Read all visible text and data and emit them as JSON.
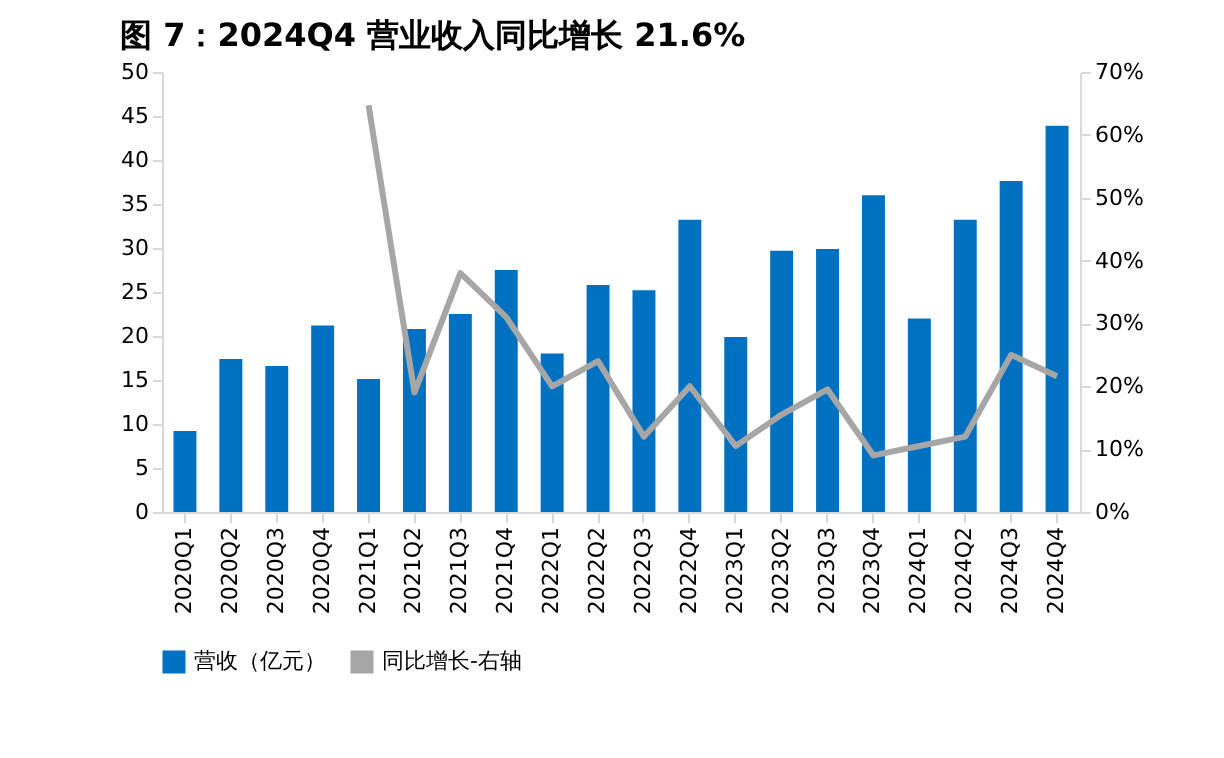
{
  "chart_data": {
    "type": "bar",
    "title": "图 7：2024Q4 营业收入同比增长 21.6%",
    "categories": [
      "2020Q1",
      "2020Q2",
      "2020Q3",
      "2020Q4",
      "2021Q1",
      "2021Q2",
      "2021Q3",
      "2021Q4",
      "2022Q1",
      "2022Q2",
      "2022Q3",
      "2022Q4",
      "2023Q1",
      "2023Q2",
      "2023Q3",
      "2023Q4",
      "2024Q1",
      "2024Q2",
      "2024Q3",
      "2024Q4"
    ],
    "series": [
      {
        "name": "营收（亿元）",
        "color": "#0070c0",
        "values": [
          9.2,
          17.4,
          16.6,
          21.2,
          15.1,
          20.8,
          22.5,
          27.5,
          18,
          25.8,
          25.2,
          33.2,
          19.9,
          29.7,
          29.9,
          36,
          22,
          33.2,
          37.6,
          43.9
        ]
      },
      {
        "name": "同比增长-右轴",
        "type": "line",
        "axis": "y2",
        "color": "#a6a6a6",
        "values": [
          null,
          null,
          null,
          null,
          64.7,
          19,
          38,
          31,
          20,
          24,
          12,
          20,
          10.5,
          15.5,
          19.5,
          9,
          10.5,
          12,
          25,
          21.6
        ]
      }
    ],
    "ylim": [
      0,
      50
    ],
    "yticks": [
      0,
      5,
      10,
      15,
      20,
      25,
      30,
      35,
      40,
      45,
      50
    ],
    "y2lim": [
      0,
      70
    ],
    "y2ticks": [
      {
        "value": 0,
        "label": "0%"
      },
      {
        "value": 10,
        "label": "10%"
      },
      {
        "value": 20,
        "label": "20%"
      },
      {
        "value": 30,
        "label": "30%"
      },
      {
        "value": 40,
        "label": "40%"
      },
      {
        "value": 50,
        "label": "50%"
      },
      {
        "value": 60,
        "label": "60%"
      },
      {
        "value": 70,
        "label": "70%"
      }
    ],
    "legend": "bottom",
    "grid": false,
    "marker": "none",
    "line_style": "solid"
  }
}
